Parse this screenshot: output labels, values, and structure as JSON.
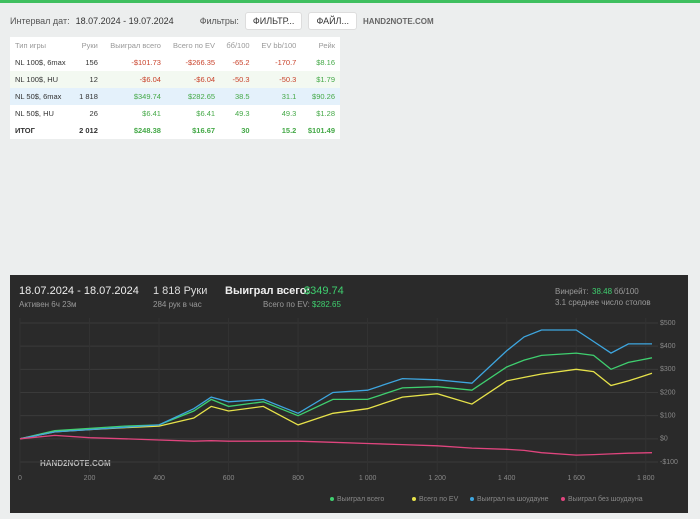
{
  "toolbar": {
    "date_label": "Интервал дат:",
    "date_range": "18.07.2024 - 19.07.2024",
    "filters_label": "Фильтры:",
    "filter_button": "ФИЛЬТР...",
    "file_button": "ФАЙЛ...",
    "logo": "HAND2NOTE.COM"
  },
  "table": {
    "headers": [
      "Тип игры",
      "Руки",
      "Выиграл всего",
      "Всего по EV",
      "бб/100",
      "EV bb/100",
      "Рейк"
    ],
    "rows": [
      [
        "NL 100$, 6max",
        "156",
        "-$101.73",
        "-$266.35",
        "-65.2",
        "-170.7",
        "$8.16"
      ],
      [
        "NL 100$, HU",
        "12",
        "-$6.04",
        "-$6.04",
        "-50.3",
        "-50.3",
        "$1.79"
      ],
      [
        "NL 50$, 6max",
        "1 818",
        "$349.74",
        "$282.65",
        "38.5",
        "31.1",
        "$90.26"
      ],
      [
        "NL 50$, HU",
        "26",
        "$6.41",
        "$6.41",
        "49.3",
        "49.3",
        "$1.28"
      ]
    ],
    "total": [
      "ИТОГ",
      "2 012",
      "$248.38",
      "$16.67",
      "30",
      "15.2",
      "$101.49"
    ]
  },
  "panel": {
    "dates": "18.07.2024 - 18.07.2024",
    "active": "Активен 6ч 23м",
    "hands": "1 818 Руки",
    "rate": "284 рук в час",
    "won_label": "Выиграл всего:",
    "won_value": "$349.74",
    "ev_label": "Всего по EV:",
    "ev_value": "$282.65",
    "winrate_label": "Винрейт:",
    "winrate_value": "38.48",
    "winrate_unit": "бб/100",
    "tables": "3.1 среднее число столов",
    "logo": "HAND2NOTE.COM"
  },
  "chart_data": {
    "type": "line",
    "x": [
      0,
      100,
      200,
      300,
      400,
      500,
      550,
      600,
      700,
      800,
      900,
      1000,
      1100,
      1200,
      1300,
      1400,
      1450,
      1500,
      1600,
      1650,
      1700,
      1750,
      1818
    ],
    "series": [
      {
        "name": "Выиграл всего",
        "color": "#3fcf6f",
        "values": [
          0,
          35,
          45,
          55,
          60,
          120,
          170,
          140,
          160,
          100,
          170,
          170,
          220,
          225,
          210,
          310,
          340,
          360,
          370,
          360,
          300,
          330,
          350
        ]
      },
      {
        "name": "Всего по EV",
        "color": "#e6e24a",
        "values": [
          0,
          30,
          40,
          48,
          55,
          90,
          140,
          120,
          140,
          60,
          110,
          130,
          180,
          195,
          150,
          250,
          265,
          280,
          300,
          290,
          230,
          250,
          283
        ]
      },
      {
        "name": "Выиграл на шоудауне",
        "color": "#3ea6df",
        "values": [
          0,
          30,
          40,
          50,
          60,
          130,
          180,
          160,
          170,
          110,
          200,
          210,
          260,
          255,
          240,
          380,
          440,
          470,
          470,
          420,
          370,
          410,
          410
        ]
      },
      {
        "name": "Выиграл без шоудауна",
        "color": "#e0457e",
        "values": [
          0,
          15,
          5,
          0,
          -5,
          -10,
          -8,
          -10,
          -10,
          -10,
          -15,
          -20,
          -25,
          -30,
          -40,
          -45,
          -50,
          -60,
          -70,
          -68,
          -65,
          -62,
          -60
        ]
      }
    ],
    "xlim": [
      0,
      1818
    ],
    "xticks": [
      0,
      200,
      400,
      600,
      800,
      {
        "value": 1000,
        "label": "1 000"
      },
      {
        "value": 1200,
        "label": "1 200"
      },
      {
        "value": 1400,
        "label": "1 400"
      },
      {
        "value": 1600,
        "label": "1 600"
      },
      {
        "value": 1800,
        "label": "1 800"
      }
    ],
    "ylim": [
      -100,
      500
    ],
    "yticks": [
      {
        "value": -100,
        "label": "-$100"
      },
      {
        "value": 0,
        "label": "$0"
      },
      {
        "value": 100,
        "label": "$100"
      },
      {
        "value": 200,
        "label": "$200"
      },
      {
        "value": 300,
        "label": "$300"
      },
      {
        "value": 400,
        "label": "$400"
      },
      {
        "value": 500,
        "label": "$500"
      }
    ],
    "grid": true
  }
}
